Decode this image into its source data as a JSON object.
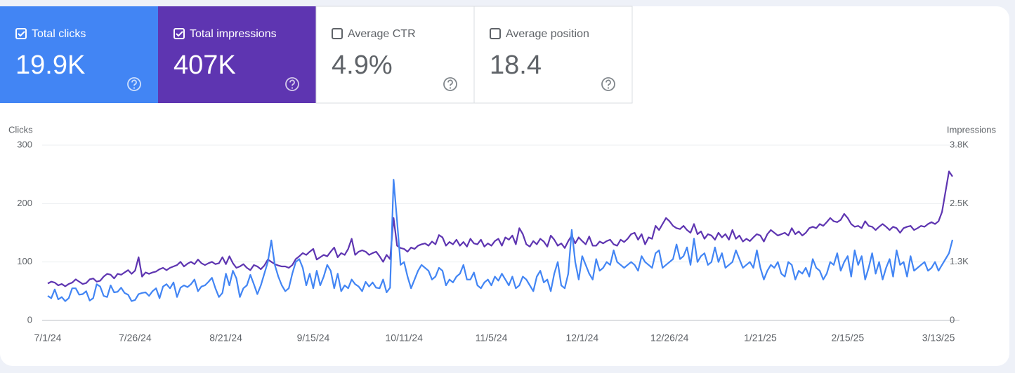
{
  "cards": [
    {
      "label": "Total clicks",
      "value": "19.9K",
      "checked": true,
      "color": "#4285f4"
    },
    {
      "label": "Total impressions",
      "value": "407K",
      "checked": true,
      "color": "#5e35b1"
    },
    {
      "label": "Average CTR",
      "value": "4.9%",
      "checked": false,
      "color": "#ffffff"
    },
    {
      "label": "Average position",
      "value": "18.4",
      "checked": false,
      "color": "#ffffff"
    }
  ],
  "chart_data": {
    "type": "line",
    "ylabel": "Clicks",
    "y2label": "Impressions",
    "categories": [
      "7/1/24",
      null,
      null,
      null,
      null,
      null,
      null,
      null,
      null,
      null,
      null,
      null,
      null,
      null,
      null,
      null,
      null,
      null,
      null,
      null,
      null,
      null,
      null,
      null,
      null,
      "7/26/24",
      null,
      null,
      null,
      null,
      null,
      null,
      null,
      null,
      null,
      null,
      null,
      null,
      null,
      null,
      null,
      null,
      null,
      null,
      null,
      null,
      null,
      null,
      null,
      null,
      null,
      "8/21/24",
      null,
      null,
      null,
      null,
      null,
      null,
      null,
      null,
      null,
      null,
      null,
      null,
      null,
      null,
      null,
      null,
      null,
      null,
      null,
      null,
      null,
      null,
      null,
      null,
      "9/15/24",
      null,
      null,
      null,
      null,
      null,
      null,
      null,
      null,
      null,
      null,
      null,
      null,
      null,
      null,
      null,
      null,
      null,
      null,
      null,
      null,
      null,
      null,
      null,
      null,
      null,
      "10/11/24",
      null,
      null,
      null,
      null,
      null,
      null,
      null,
      null,
      null,
      null,
      null,
      null,
      null,
      null,
      null,
      null,
      null,
      null,
      null,
      null,
      null,
      null,
      null,
      null,
      "11/5/24",
      null,
      null,
      null,
      null,
      null,
      null,
      null,
      null,
      null,
      null,
      null,
      null,
      null,
      null,
      null,
      null,
      null,
      null,
      null,
      null,
      null,
      null,
      null,
      null,
      null,
      "12/1/24",
      null,
      null,
      null,
      null,
      null,
      null,
      null,
      null,
      null,
      null,
      null,
      null,
      null,
      null,
      null,
      null,
      null,
      null,
      null,
      null,
      null,
      null,
      null,
      null,
      "12/26/24",
      null,
      null,
      null,
      null,
      null,
      null,
      null,
      null,
      null,
      null,
      null,
      null,
      null,
      null,
      null,
      null,
      null,
      null,
      null,
      null,
      null,
      null,
      null,
      null,
      null,
      "1/21/25",
      null,
      null,
      null,
      null,
      null,
      null,
      null,
      null,
      null,
      null,
      null,
      null,
      null,
      null,
      null,
      null,
      null,
      null,
      null,
      null,
      null,
      null,
      null,
      null,
      "2/15/25",
      null,
      null,
      null,
      null,
      null,
      null,
      null,
      null,
      null,
      null,
      null,
      null,
      null,
      null,
      null,
      null,
      null,
      null,
      null,
      null,
      null,
      null,
      null,
      null,
      null,
      "3/13/25",
      null,
      null,
      null,
      null
    ],
    "series": [
      {
        "color": "#4285f4",
        "values": [
          42,
          38,
          53,
          36,
          40,
          33,
          38,
          55,
          55,
          44,
          45,
          50,
          34,
          38,
          62,
          58,
          42,
          40,
          60,
          48,
          49,
          56,
          47,
          44,
          33,
          35,
          45,
          47,
          48,
          42,
          50,
          55,
          38,
          58,
          62,
          55,
          65,
          40,
          56,
          60,
          57,
          62,
          70,
          50,
          58,
          60,
          66,
          73,
          55,
          40,
          47,
          80,
          60,
          85,
          72,
          40,
          55,
          60,
          78,
          62,
          45,
          60,
          80,
          100,
          137,
          95,
          75,
          60,
          50,
          55,
          80,
          100,
          105,
          90,
          60,
          80,
          55,
          85,
          60,
          75,
          95,
          85,
          55,
          80,
          50,
          60,
          55,
          70,
          62,
          58,
          50,
          66,
          58,
          65,
          56,
          55,
          70,
          48,
          56,
          241,
          170,
          95,
          100,
          75,
          55,
          70,
          85,
          95,
          90,
          85,
          70,
          75,
          90,
          85,
          60,
          70,
          65,
          75,
          80,
          95,
          70,
          70,
          82,
          60,
          55,
          65,
          70,
          60,
          75,
          68,
          80,
          70,
          60,
          75,
          55,
          60,
          75,
          70,
          60,
          50,
          75,
          85,
          65,
          70,
          50,
          80,
          100,
          60,
          55,
          80,
          155,
          100,
          70,
          110,
          95,
          80,
          70,
          105,
          85,
          90,
          100,
          95,
          120,
          100,
          95,
          90,
          95,
          100,
          95,
          85,
          110,
          100,
          95,
          90,
          115,
          120,
          90,
          95,
          100,
          105,
          130,
          105,
          110,
          125,
          95,
          140,
          100,
          110,
          115,
          95,
          100,
          125,
          100,
          115,
          90,
          95,
          100,
          120,
          105,
          90,
          95,
          100,
          90,
          120,
          90,
          70,
          85,
          95,
          90,
          100,
          80,
          75,
          100,
          95,
          70,
          85,
          80,
          90,
          75,
          105,
          90,
          85,
          70,
          80,
          100,
          95,
          115,
          85,
          100,
          110,
          75,
          120,
          95,
          110,
          70,
          90,
          115,
          80,
          100,
          70,
          90,
          105,
          75,
          120,
          95,
          100,
          75,
          110,
          85,
          90,
          95,
          100,
          85,
          90,
          100,
          85,
          95,
          105,
          115,
          138
        ]
      },
      {
        "color": "#5e35b1",
        "axis": "y2",
        "values": [
          800,
          840,
          820,
          760,
          790,
          740,
          790,
          820,
          890,
          840,
          790,
          810,
          890,
          910,
          840,
          860,
          950,
          1010,
          990,
          910,
          1010,
          990,
          1040,
          1090,
          1010,
          1080,
          1370,
          950,
          1040,
          1010,
          1040,
          1060,
          1110,
          1140,
          1090,
          1140,
          1170,
          1200,
          1270,
          1170,
          1230,
          1270,
          1220,
          1320,
          1240,
          1200,
          1240,
          1270,
          1220,
          1240,
          1370,
          1220,
          1390,
          1240,
          1140,
          1170,
          1220,
          1140,
          1090,
          1200,
          1170,
          1110,
          1190,
          1320,
          1270,
          1220,
          1190,
          1170,
          1170,
          1140,
          1200,
          1330,
          1390,
          1460,
          1420,
          1490,
          1550,
          1320,
          1370,
          1420,
          1390,
          1490,
          1580,
          1370,
          1460,
          1420,
          1550,
          1770,
          1420,
          1490,
          1520,
          1490,
          1420,
          1460,
          1490,
          1390,
          1270,
          1420,
          1330,
          2220,
          1620,
          1570,
          1550,
          1490,
          1580,
          1550,
          1620,
          1650,
          1670,
          1620,
          1710,
          1650,
          1850,
          1800,
          1620,
          1700,
          1650,
          1750,
          1620,
          1700,
          1600,
          1770,
          1670,
          1650,
          1750,
          1600,
          1670,
          1620,
          1720,
          1770,
          1620,
          1800,
          1750,
          1840,
          1650,
          2000,
          1870,
          1650,
          1600,
          1720,
          1650,
          1770,
          1710,
          1600,
          1840,
          1750,
          1620,
          1670,
          1570,
          1720,
          1840,
          1670,
          1800,
          1720,
          1650,
          1820,
          1620,
          1620,
          1710,
          1670,
          1720,
          1750,
          1650,
          1620,
          1750,
          1700,
          1770,
          1870,
          1900,
          1750,
          1870,
          1650,
          1800,
          1770,
          2050,
          1960,
          2090,
          2220,
          2150,
          2050,
          2000,
          1980,
          2050,
          1960,
          1900,
          2090,
          1870,
          1930,
          1770,
          1870,
          1840,
          1750,
          1900,
          1800,
          1870,
          1750,
          1960,
          1770,
          1840,
          1710,
          1770,
          1720,
          1800,
          1870,
          1840,
          1710,
          1870,
          1960,
          1900,
          1840,
          1870,
          1900,
          1840,
          2000,
          1870,
          1930,
          1840,
          1900,
          2000,
          2030,
          2000,
          2090,
          2050,
          2130,
          2220,
          2150,
          2130,
          2180,
          2310,
          2220,
          2090,
          2030,
          2050,
          2000,
          2150,
          2050,
          2030,
          1960,
          2030,
          2090,
          2030,
          1960,
          2030,
          2000,
          1900,
          2000,
          2030,
          2050,
          1960,
          2000,
          2050,
          2030,
          2090,
          2130,
          2090,
          2150,
          2350,
          2790,
          3230,
          3120
        ]
      }
    ],
    "ylim": [
      0,
      300
    ],
    "yticks": [
      0,
      100,
      200,
      300
    ],
    "y2lim": [
      0,
      3800
    ],
    "y2ticks": [
      0,
      {
        "value": 1267,
        "label": "1.3K"
      },
      {
        "value": 2533,
        "label": "2.5K"
      },
      {
        "value": 3800,
        "label": "3.8K"
      }
    ],
    "grid": true
  }
}
